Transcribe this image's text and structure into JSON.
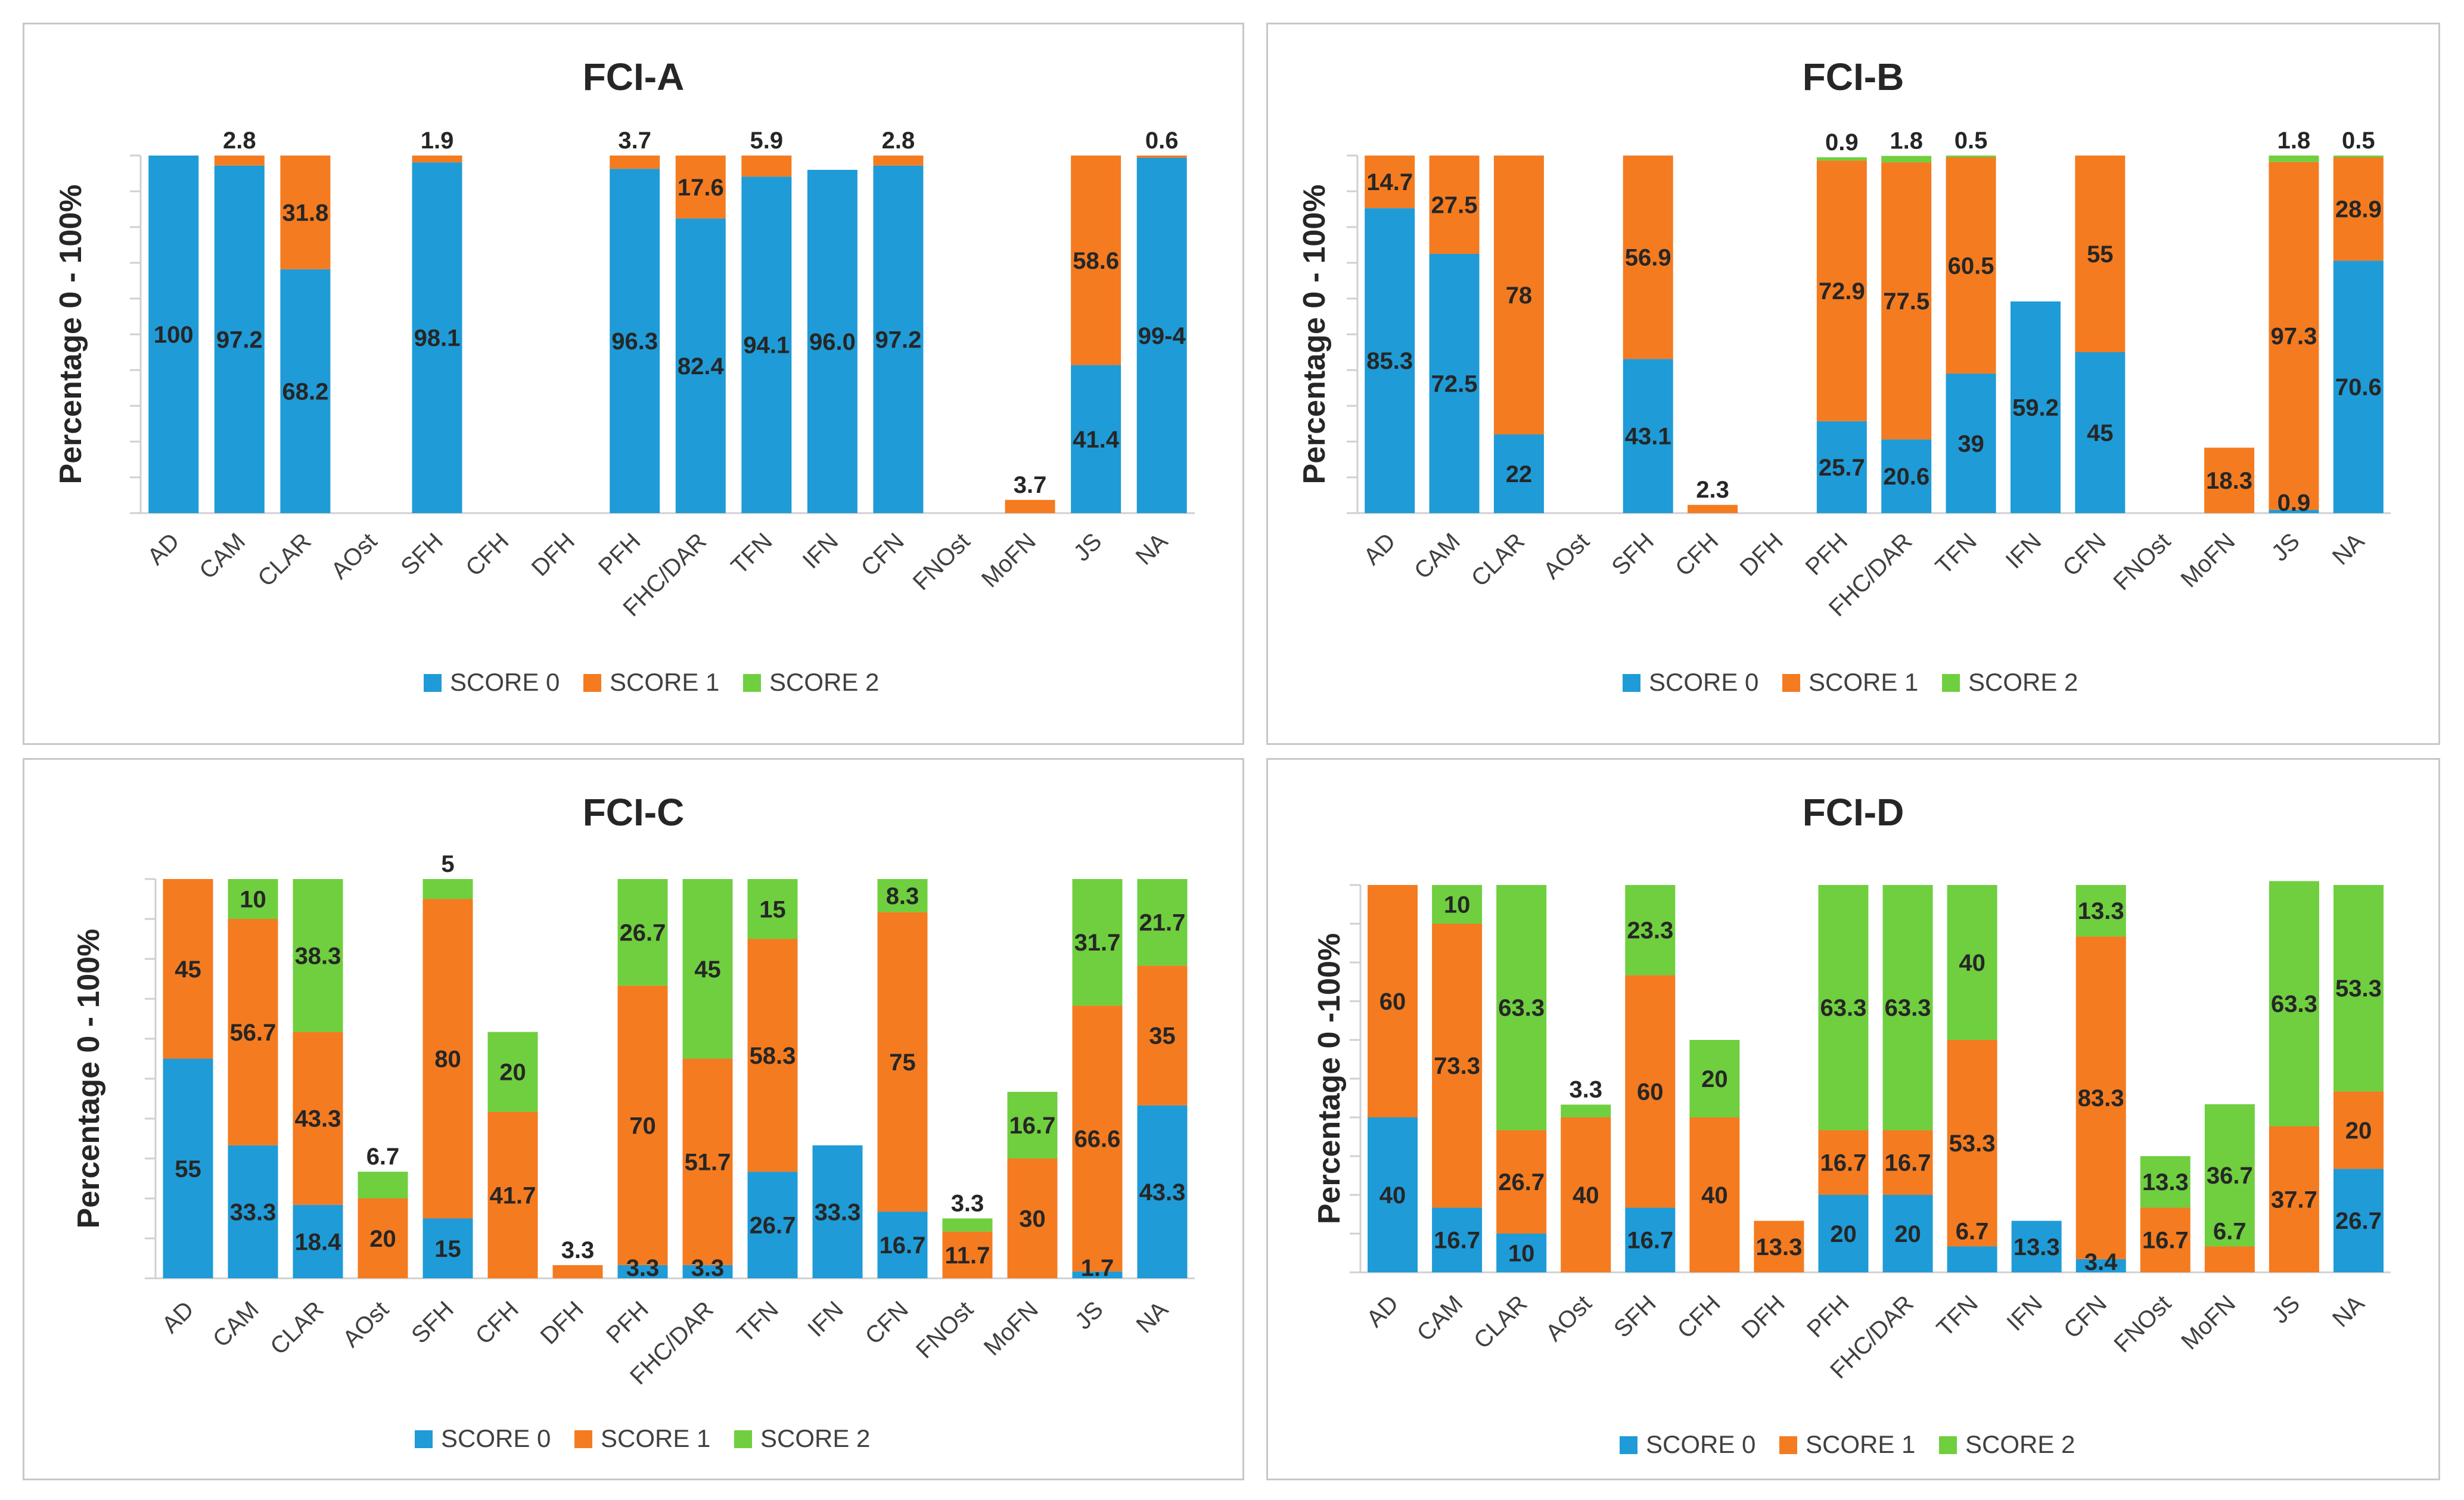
{
  "colors": {
    "score0": "#1f9bd7",
    "score1": "#f47b20",
    "score2": "#6fcf3f"
  },
  "common": {
    "ylabel": "Percentage 0 - 100%",
    "categories": [
      "AD",
      "CAM",
      "CLAR",
      "AOst",
      "SFH",
      "CFH",
      "DFH",
      "PFH",
      "FHC/DAR",
      "TFN",
      "IFN",
      "CFN",
      "FNOst",
      "MoFN",
      "JS",
      "NA"
    ],
    "legend": [
      "SCORE 0",
      "SCORE 1",
      "SCORE 2"
    ]
  },
  "chart_data": [
    {
      "type": "bar",
      "stacked": true,
      "title": "FCI-A",
      "ylabel": "Percentage 0 - 100%",
      "ylim": [
        0,
        100
      ],
      "categories": [
        "AD",
        "CAM",
        "CLAR",
        "AOst",
        "SFH",
        "CFH",
        "DFH",
        "PFH",
        "FHC/DAR",
        "TFN",
        "IFN",
        "CFN",
        "FNOst",
        "MoFN",
        "JS",
        "NA"
      ],
      "series": [
        {
          "name": "SCORE 0",
          "values": [
            100,
            97.2,
            68.2,
            0,
            98.1,
            0,
            0,
            96.3,
            82.4,
            94.1,
            96.0,
            97.2,
            0,
            0,
            41.4,
            99.4
          ]
        },
        {
          "name": "SCORE 1",
          "values": [
            0,
            2.8,
            31.8,
            0,
            1.9,
            0,
            0,
            3.7,
            17.6,
            5.9,
            0,
            2.8,
            0,
            3.7,
            58.6,
            0.6
          ]
        },
        {
          "name": "SCORE 2",
          "values": [
            0,
            0,
            0,
            0,
            0,
            0,
            0,
            0,
            0,
            0,
            0,
            0,
            0,
            0,
            0,
            0
          ]
        }
      ],
      "labels": [
        [
          "100",
          "",
          ""
        ],
        [
          "97.2",
          "2.8",
          ""
        ],
        [
          "68.2",
          "31.8",
          ""
        ],
        [
          "",
          "",
          ""
        ],
        [
          "98.1",
          "1.9",
          ""
        ],
        [
          "",
          "",
          ""
        ],
        [
          "",
          "",
          ""
        ],
        [
          "96.3",
          "3.7",
          ""
        ],
        [
          "82.4",
          "17.6",
          ""
        ],
        [
          "94.1",
          "5.9",
          ""
        ],
        [
          "96.0",
          "",
          ""
        ],
        [
          "97.2",
          "2.8",
          ""
        ],
        [
          "",
          "",
          ""
        ],
        [
          "",
          "3.7",
          ""
        ],
        [
          "41.4",
          "58.6",
          ""
        ],
        [
          "99-4",
          "0.6",
          ""
        ]
      ],
      "legend": [
        "SCORE 0",
        "SCORE 1",
        "SCORE 2"
      ]
    },
    {
      "type": "bar",
      "stacked": true,
      "title": "FCI-B",
      "ylabel": "Percentage 0 - 100%",
      "ylim": [
        0,
        100
      ],
      "categories": [
        "AD",
        "CAM",
        "CLAR",
        "AOst",
        "SFH",
        "CFH",
        "DFH",
        "PFH",
        "FHC/DAR",
        "TFN",
        "IFN",
        "CFN",
        "FNOst",
        "MoFN",
        "JS",
        "NA"
      ],
      "series": [
        {
          "name": "SCORE 0",
          "values": [
            85.3,
            72.5,
            22,
            0,
            43.1,
            0,
            0,
            25.7,
            20.6,
            39,
            59.2,
            45,
            0,
            0,
            0.9,
            70.6
          ]
        },
        {
          "name": "SCORE 1",
          "values": [
            14.7,
            27.5,
            78,
            0,
            56.9,
            2.3,
            0,
            72.9,
            77.5,
            60.5,
            0,
            55,
            0,
            18.3,
            97.3,
            28.9
          ]
        },
        {
          "name": "SCORE 2",
          "values": [
            0,
            0,
            0,
            0,
            0,
            0,
            0,
            0.9,
            1.8,
            0.5,
            0,
            0,
            0,
            0,
            1.8,
            0.5
          ]
        }
      ],
      "labels": [
        [
          "85.3",
          "14.7",
          ""
        ],
        [
          "72.5",
          "27.5",
          ""
        ],
        [
          "22",
          "78",
          ""
        ],
        [
          "",
          "",
          ""
        ],
        [
          "43.1",
          "56.9",
          ""
        ],
        [
          "",
          "2.3",
          ""
        ],
        [
          "",
          "",
          ""
        ],
        [
          "25.7",
          "72.9",
          "0.9"
        ],
        [
          "20.6",
          "77.5",
          "1.8"
        ],
        [
          "39",
          "60.5",
          "0.5"
        ],
        [
          "59.2",
          "",
          ""
        ],
        [
          "45",
          "55",
          ""
        ],
        [
          "",
          "",
          ""
        ],
        [
          "",
          "18.3",
          ""
        ],
        [
          "0.9",
          "97.3",
          "1.8"
        ],
        [
          "70.6",
          "28.9",
          "0.5"
        ]
      ],
      "legend": [
        "SCORE 0",
        "SCORE 1",
        "SCORE 2"
      ]
    },
    {
      "type": "bar",
      "stacked": true,
      "title": "FCI-C",
      "ylabel": "Percentage 0 - 100%",
      "ylim": [
        0,
        100
      ],
      "categories": [
        "AD",
        "CAM",
        "CLAR",
        "AOst",
        "SFH",
        "CFH",
        "DFH",
        "PFH",
        "FHC/DAR",
        "TFN",
        "IFN",
        "CFN",
        "FNOst",
        "MoFN",
        "JS",
        "NA"
      ],
      "series": [
        {
          "name": "SCORE 0",
          "values": [
            55,
            33.3,
            18.4,
            0,
            15,
            0,
            0,
            3.3,
            3.3,
            26.7,
            33.3,
            16.7,
            0,
            0,
            1.7,
            43.3
          ]
        },
        {
          "name": "SCORE 1",
          "values": [
            45,
            56.7,
            43.3,
            20,
            80,
            41.7,
            3.3,
            70,
            51.7,
            58.3,
            0,
            75,
            11.7,
            30,
            66.6,
            35
          ]
        },
        {
          "name": "SCORE 2",
          "values": [
            0,
            10,
            38.3,
            6.7,
            5,
            20,
            0,
            26.7,
            45,
            15,
            0,
            8.3,
            3.3,
            16.7,
            31.7,
            21.7
          ]
        }
      ],
      "labels": [
        [
          "55",
          "45",
          ""
        ],
        [
          "33.3",
          "56.7",
          "10"
        ],
        [
          "18.4",
          "43.3",
          "38.3"
        ],
        [
          "",
          "20",
          "6.7"
        ],
        [
          "15",
          "80",
          "5"
        ],
        [
          "",
          "41.7",
          "20"
        ],
        [
          "",
          "3.3",
          ""
        ],
        [
          "3.3",
          "70",
          "26.7"
        ],
        [
          "3.3",
          "51.7",
          "45"
        ],
        [
          "26.7",
          "58.3",
          "15"
        ],
        [
          "33.3",
          "",
          ""
        ],
        [
          "16.7",
          "75",
          "8.3"
        ],
        [
          "",
          "11.7",
          "3.3"
        ],
        [
          "",
          "30",
          "16.7"
        ],
        [
          "1.7",
          "66.6",
          "31.7"
        ],
        [
          "43.3",
          "35",
          "21.7"
        ]
      ],
      "legend": [
        "SCORE 0",
        "SCORE 1",
        "SCORE 2"
      ]
    },
    {
      "type": "bar",
      "stacked": true,
      "title": "FCI-D",
      "ylabel": "Percentage 0 -100%",
      "ylim": [
        0,
        100
      ],
      "categories": [
        "AD",
        "CAM",
        "CLAR",
        "AOst",
        "SFH",
        "CFH",
        "DFH",
        "PFH",
        "FHC/DAR",
        "TFN",
        "IFN",
        "CFN",
        "FNOst",
        "MoFN",
        "JS",
        "NA"
      ],
      "series": [
        {
          "name": "SCORE 0",
          "values": [
            40,
            16.7,
            10,
            0,
            16.7,
            0,
            0,
            20,
            20,
            6.7,
            13.3,
            3.4,
            0,
            0,
            0,
            26.7
          ]
        },
        {
          "name": "SCORE 1",
          "values": [
            60,
            73.3,
            26.7,
            40,
            60,
            40,
            13.3,
            16.7,
            16.7,
            53.3,
            0,
            83.3,
            16.7,
            6.7,
            37.7,
            20
          ]
        },
        {
          "name": "SCORE 2",
          "values": [
            0,
            10,
            63.3,
            3.3,
            23.3,
            20,
            0,
            63.3,
            63.3,
            40,
            0,
            13.3,
            13.3,
            36.7,
            63.3,
            53.3
          ]
        }
      ],
      "labels": [
        [
          "40",
          "60",
          ""
        ],
        [
          "16.7",
          "73.3",
          "10"
        ],
        [
          "10",
          "26.7",
          "63.3"
        ],
        [
          "",
          "40",
          "3.3"
        ],
        [
          "16.7",
          "60",
          "23.3"
        ],
        [
          "",
          "40",
          "20"
        ],
        [
          "",
          "13.3",
          ""
        ],
        [
          "20",
          "16.7",
          "63.3"
        ],
        [
          "20",
          "16.7",
          "63.3"
        ],
        [
          "6.7",
          "53.3",
          "40"
        ],
        [
          "13.3",
          "",
          ""
        ],
        [
          "3.4",
          "83.3",
          "13.3"
        ],
        [
          "",
          "16.7",
          "13.3"
        ],
        [
          "",
          "6.7",
          "36.7"
        ],
        [
          "",
          "37.7",
          "63.3"
        ],
        [
          "26.7",
          "20",
          "53.3"
        ]
      ],
      "legend": [
        "SCORE 0",
        "SCORE 1",
        "SCORE 2"
      ]
    }
  ]
}
